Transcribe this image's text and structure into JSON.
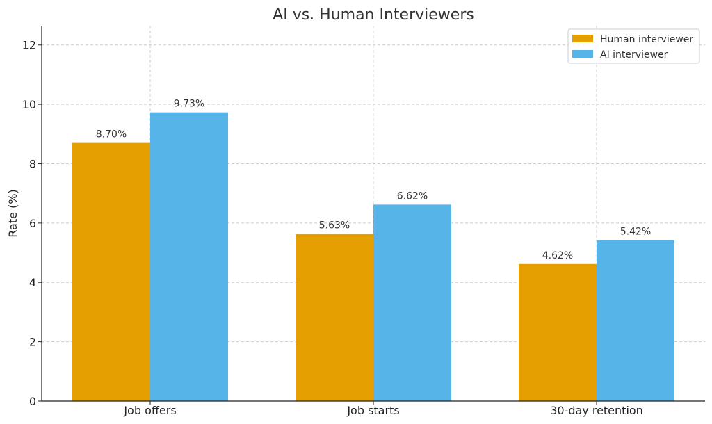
{
  "chart_data": {
    "type": "bar",
    "title": "AI vs. Human Interviewers",
    "xlabel": "",
    "ylabel": "Rate (%)",
    "categories": [
      "Job offers",
      "Job starts",
      "30-day retention"
    ],
    "series": [
      {
        "name": "Human interviewer",
        "color": "#E69F00",
        "values": [
          8.7,
          5.63,
          4.62
        ],
        "labels": [
          "8.70%",
          "5.63%",
          "4.62%"
        ]
      },
      {
        "name": "AI interviewer",
        "color": "#56B4E9",
        "values": [
          9.73,
          6.62,
          5.42
        ],
        "labels": [
          "9.73%",
          "6.62%",
          "5.42%"
        ]
      }
    ],
    "ylim": [
      0,
      12.65
    ],
    "yticks": [
      0,
      2,
      4,
      6,
      8,
      10,
      12
    ],
    "grid": true,
    "legend_position": "top-right"
  }
}
